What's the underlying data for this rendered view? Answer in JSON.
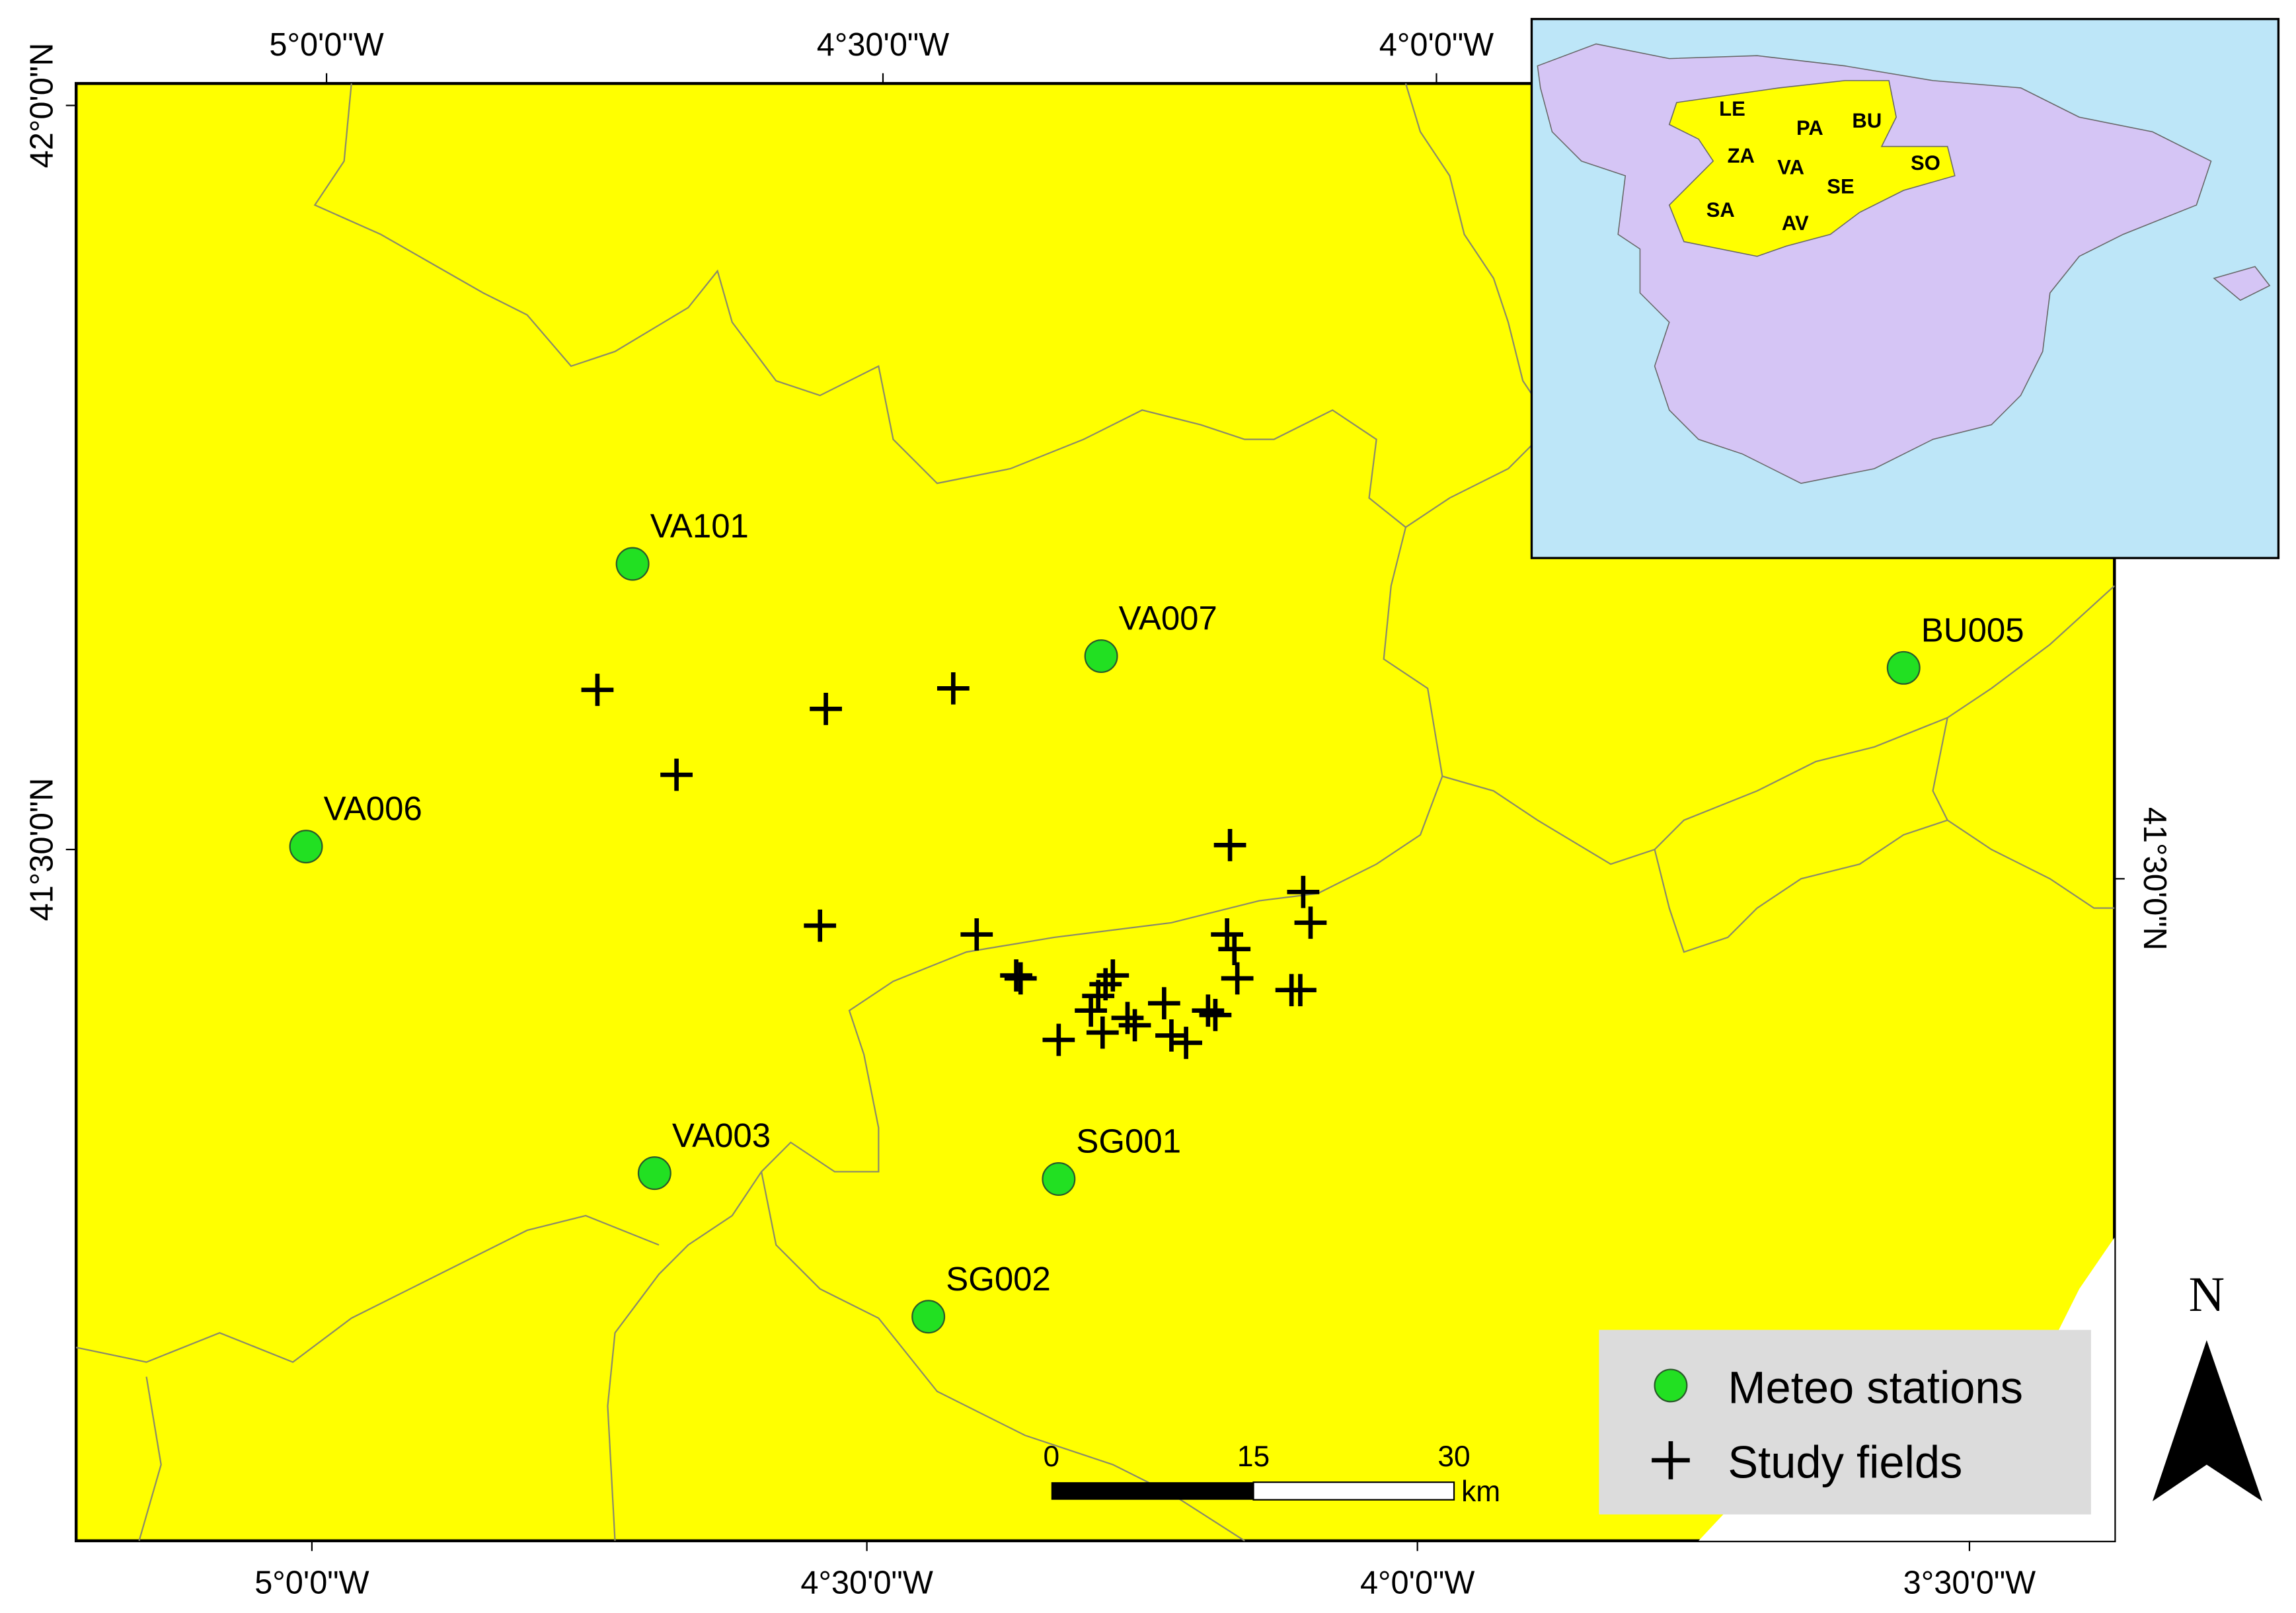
{
  "map": {
    "top_labels": [
      "5°0'0\"W",
      "4°30'0\"W",
      "4°0'0\"W"
    ],
    "bottom_labels": [
      "5°0'0\"W",
      "4°30'0\"W",
      "4°0'0\"W",
      "3°30'0\"W"
    ],
    "left_labels": [
      "42°0'0\"N",
      "41°30'0\"N"
    ],
    "right_labels": [
      "41°30'0\"N"
    ],
    "stations": [
      "VA101",
      "VA007",
      "BU005",
      "VA006",
      "VA003",
      "SG001",
      "SG002"
    ],
    "inset_regions": [
      "LE",
      "PA",
      "BU",
      "ZA",
      "VA",
      "SO",
      "SE",
      "SA",
      "AV"
    ],
    "legend": [
      "Meteo stations",
      "Study fields"
    ],
    "scale_bar": {
      "ticks": [
        "0",
        "15",
        "30"
      ],
      "unit": "km"
    },
    "north": "N"
  }
}
